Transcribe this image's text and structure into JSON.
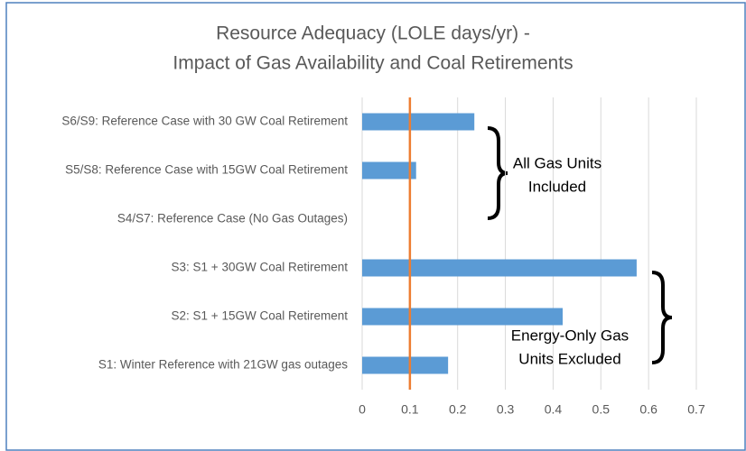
{
  "chart_data": {
    "type": "barh",
    "title": [
      "Resource Adequacy (LOLE days/yr)  -",
      "Impact of Gas Availability and Coal Retirements"
    ],
    "categories": [
      "S6/S9: Reference Case with 30 GW Coal Retirement",
      "S5/S8: Reference Case with 15GW Coal Retirement",
      "S4/S7: Reference Case (No Gas Outages)",
      "S3: S1 + 30GW Coal Retirement",
      "S2: S1 + 15GW Coal Retirement",
      "S1: Winter Reference with 21GW gas outages"
    ],
    "values": [
      0.235,
      0.113,
      0,
      0.575,
      0.42,
      0.18
    ],
    "color": "#5b9bd5",
    "xlim": [
      0,
      0.7
    ],
    "xticks": [
      0,
      0.1,
      0.2,
      0.3,
      0.4,
      0.5,
      0.6,
      0.7
    ],
    "grid": true,
    "reference_line": {
      "value": 0.1,
      "color": "#ed7d31"
    },
    "annotations": [
      [
        "All Gas Units",
        "Included"
      ],
      [
        "Energy-Only Gas",
        "Units Excluded"
      ]
    ]
  }
}
